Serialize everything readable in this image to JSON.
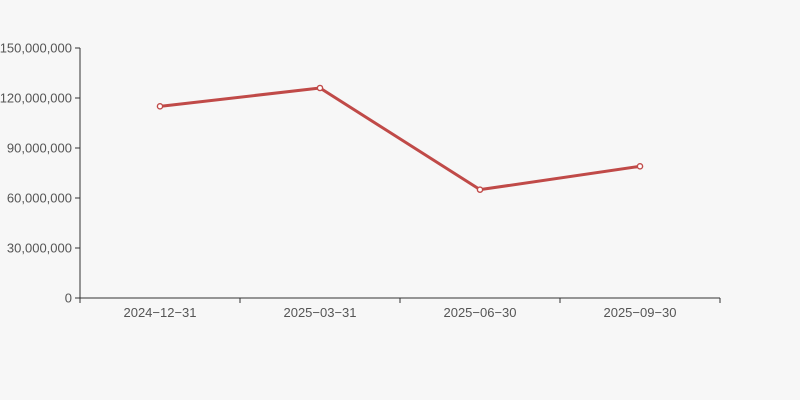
{
  "chart_data": {
    "type": "line",
    "categories": [
      "2024−12−31",
      "2025−03−31",
      "2025−06−30",
      "2025−09−30"
    ],
    "values": [
      115000000,
      126000000,
      65000000,
      79000000
    ],
    "title": "",
    "xlabel": "",
    "ylabel": "",
    "ylim": [
      0,
      150000000
    ],
    "y_ticks": [
      0,
      30000000,
      60000000,
      90000000,
      120000000,
      150000000
    ],
    "y_tick_labels": [
      "0",
      "30,000,000",
      "60,000,000",
      "90,000,000",
      "120,000,000",
      "150,000,000"
    ],
    "grid": false,
    "legend": null,
    "marker": "hollow-circle"
  },
  "colors": {
    "background": "#f7f7f7",
    "axis": "#333333",
    "tick_text": "#555555",
    "line": "#c04a48",
    "marker_fill": "#ffffff"
  }
}
